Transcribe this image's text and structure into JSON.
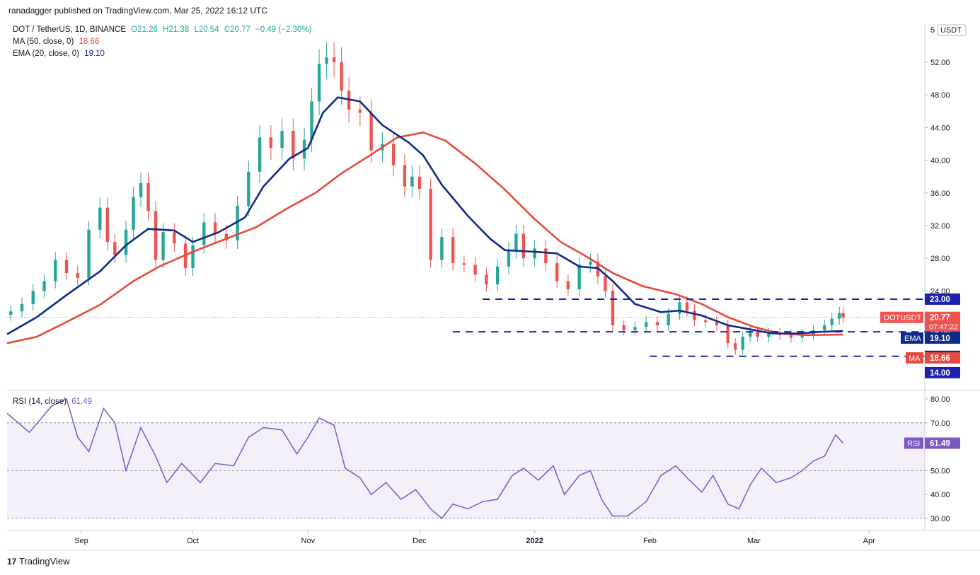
{
  "header": {
    "publisher": "ranadagger published on TradingView.com, Mar 25, 2022 16:12 UTC"
  },
  "legend": {
    "symbol": "DOT / TetherUS, 1D, BINANCE",
    "o": "O21.26",
    "h": "H21.38",
    "l": "L20.54",
    "c": "C20.77",
    "change": "−0.49 (−2.30%)",
    "ma_label": "MA (50, close, 0)",
    "ma_value": "18.66",
    "ema_label": "EMA (20, close, 0)",
    "ema_value": "19.10",
    "rsi_label": "RSI (14, close)",
    "rsi_value": "61.49"
  },
  "footer": {
    "brand": "TradingView"
  },
  "colors": {
    "up": "#26a69a",
    "down": "#ef5350",
    "ema": "#0d2b8a",
    "ma": "#e64a3c",
    "rsi": "#7e57c2",
    "level": "#1e22aa"
  },
  "chart_data": {
    "type": "candlestick",
    "currency_label": "USDT",
    "price_ticks": [
      "52.00",
      "48.00",
      "44.00",
      "40.00",
      "36.00",
      "32.00",
      "28.00",
      "24.00"
    ],
    "price_top_label": "5",
    "rsi_ticks": [
      "80.00",
      "70.00",
      "50.00",
      "40.00",
      "30.00"
    ],
    "x_labels": [
      "Sep",
      "Oct",
      "Nov",
      "Dec",
      "2022",
      "Feb",
      "Mar",
      "Apr"
    ],
    "levels": [
      {
        "value": 23.0,
        "label": "23.00",
        "from": "2021-12-18"
      },
      {
        "value": 19.0,
        "label": "19.00",
        "from": "2021-12-10"
      },
      {
        "value": 16.0,
        "label": "16.00",
        "from": "2022-02-01"
      },
      {
        "value": 14.0,
        "label": "14.00"
      }
    ],
    "price_tags": [
      {
        "name": "DOTUSDT",
        "value": 20.77,
        "label": "20.77",
        "countdown": "07:47:22"
      },
      {
        "name": "EMA",
        "value": 19.1,
        "label": "19.10"
      },
      {
        "name": "MA",
        "value": 18.66,
        "label": "18.66"
      }
    ],
    "rsi_tag": {
      "name": "RSI",
      "label": "61.49",
      "value": 61.49
    },
    "close_series": [
      {
        "d": "2021-08-13",
        "c": 21.5
      },
      {
        "d": "2021-08-16",
        "c": 22.4
      },
      {
        "d": "2021-08-19",
        "c": 24.0
      },
      {
        "d": "2021-08-22",
        "c": 25.2
      },
      {
        "d": "2021-08-25",
        "c": 27.8
      },
      {
        "d": "2021-08-28",
        "c": 26.2
      },
      {
        "d": "2021-08-31",
        "c": 25.6
      },
      {
        "d": "2021-09-03",
        "c": 31.5
      },
      {
        "d": "2021-09-06",
        "c": 34.2
      },
      {
        "d": "2021-09-08",
        "c": 30.0
      },
      {
        "d": "2021-09-10",
        "c": 28.4
      },
      {
        "d": "2021-09-13",
        "c": 31.5
      },
      {
        "d": "2021-09-15",
        "c": 35.5
      },
      {
        "d": "2021-09-17",
        "c": 37.2
      },
      {
        "d": "2021-09-19",
        "c": 33.8
      },
      {
        "d": "2021-09-21",
        "c": 27.8
      },
      {
        "d": "2021-09-23",
        "c": 31.2
      },
      {
        "d": "2021-09-26",
        "c": 29.8
      },
      {
        "d": "2021-09-29",
        "c": 26.8
      },
      {
        "d": "2021-10-01",
        "c": 29.6
      },
      {
        "d": "2021-10-04",
        "c": 32.4
      },
      {
        "d": "2021-10-07",
        "c": 31.0
      },
      {
        "d": "2021-10-10",
        "c": 30.2
      },
      {
        "d": "2021-10-13",
        "c": 34.4
      },
      {
        "d": "2021-10-16",
        "c": 38.6
      },
      {
        "d": "2021-10-19",
        "c": 42.8
      },
      {
        "d": "2021-10-22",
        "c": 41.5
      },
      {
        "d": "2021-10-25",
        "c": 43.6
      },
      {
        "d": "2021-10-28",
        "c": 40.2
      },
      {
        "d": "2021-10-31",
        "c": 42.5
      },
      {
        "d": "2021-11-02",
        "c": 47.2
      },
      {
        "d": "2021-11-04",
        "c": 51.8
      },
      {
        "d": "2021-11-06",
        "c": 52.6
      },
      {
        "d": "2021-11-08",
        "c": 52.0
      },
      {
        "d": "2021-11-10",
        "c": 48.5
      },
      {
        "d": "2021-11-12",
        "c": 46.2
      },
      {
        "d": "2021-11-15",
        "c": 45.8
      },
      {
        "d": "2021-11-18",
        "c": 41.2
      },
      {
        "d": "2021-11-21",
        "c": 42.0
      },
      {
        "d": "2021-11-24",
        "c": 39.4
      },
      {
        "d": "2021-11-27",
        "c": 36.8
      },
      {
        "d": "2021-11-29",
        "c": 38.0
      },
      {
        "d": "2021-12-01",
        "c": 36.5
      },
      {
        "d": "2021-12-04",
        "c": 27.8
      },
      {
        "d": "2021-12-07",
        "c": 30.6
      },
      {
        "d": "2021-12-10",
        "c": 27.4
      },
      {
        "d": "2021-12-13",
        "c": 27.2
      },
      {
        "d": "2021-12-16",
        "c": 26.0
      },
      {
        "d": "2021-12-19",
        "c": 24.8
      },
      {
        "d": "2021-12-22",
        "c": 27.0
      },
      {
        "d": "2021-12-25",
        "c": 29.0
      },
      {
        "d": "2021-12-27",
        "c": 31.0
      },
      {
        "d": "2021-12-29",
        "c": 28.0
      },
      {
        "d": "2022-01-01",
        "c": 29.2
      },
      {
        "d": "2022-01-04",
        "c": 27.4
      },
      {
        "d": "2022-01-07",
        "c": 25.2
      },
      {
        "d": "2022-01-10",
        "c": 24.2
      },
      {
        "d": "2022-01-13",
        "c": 27.2
      },
      {
        "d": "2022-01-16",
        "c": 27.6
      },
      {
        "d": "2022-01-18",
        "c": 25.8
      },
      {
        "d": "2022-01-20",
        "c": 24.0
      },
      {
        "d": "2022-01-22",
        "c": 19.8
      },
      {
        "d": "2022-01-25",
        "c": 19.2
      },
      {
        "d": "2022-01-28",
        "c": 19.6
      },
      {
        "d": "2022-01-31",
        "c": 20.2
      },
      {
        "d": "2022-02-03",
        "c": 19.8
      },
      {
        "d": "2022-02-06",
        "c": 21.2
      },
      {
        "d": "2022-02-09",
        "c": 22.6
      },
      {
        "d": "2022-02-11",
        "c": 21.6
      },
      {
        "d": "2022-02-13",
        "c": 20.4
      },
      {
        "d": "2022-02-16",
        "c": 20.2
      },
      {
        "d": "2022-02-19",
        "c": 19.8
      },
      {
        "d": "2022-02-22",
        "c": 17.6
      },
      {
        "d": "2022-02-24",
        "c": 16.8
      },
      {
        "d": "2022-02-26",
        "c": 18.4
      },
      {
        "d": "2022-02-28",
        "c": 19.0
      },
      {
        "d": "2022-03-02",
        "c": 18.4
      },
      {
        "d": "2022-03-05",
        "c": 18.8
      },
      {
        "d": "2022-03-08",
        "c": 18.6
      },
      {
        "d": "2022-03-11",
        "c": 18.3
      },
      {
        "d": "2022-03-14",
        "c": 18.7
      },
      {
        "d": "2022-03-17",
        "c": 19.2
      },
      {
        "d": "2022-03-20",
        "c": 19.8
      },
      {
        "d": "2022-03-22",
        "c": 20.6
      },
      {
        "d": "2022-03-24",
        "c": 21.3
      },
      {
        "d": "2022-03-25",
        "c": 20.77
      }
    ],
    "ema_series": [
      {
        "d": "2021-08-12",
        "v": 18.7
      },
      {
        "d": "2021-08-20",
        "v": 20.8
      },
      {
        "d": "2021-08-28",
        "v": 23.5
      },
      {
        "d": "2021-09-06",
        "v": 26.4
      },
      {
        "d": "2021-09-13",
        "v": 29.6
      },
      {
        "d": "2021-09-19",
        "v": 31.6
      },
      {
        "d": "2021-09-26",
        "v": 31.4
      },
      {
        "d": "2021-10-01",
        "v": 30.0
      },
      {
        "d": "2021-10-08",
        "v": 31.2
      },
      {
        "d": "2021-10-15",
        "v": 33.0
      },
      {
        "d": "2021-10-20",
        "v": 36.8
      },
      {
        "d": "2021-10-27",
        "v": 40.2
      },
      {
        "d": "2021-11-01",
        "v": 41.5
      },
      {
        "d": "2021-11-05",
        "v": 45.8
      },
      {
        "d": "2021-11-09",
        "v": 47.7
      },
      {
        "d": "2021-11-15",
        "v": 47.2
      },
      {
        "d": "2021-11-21",
        "v": 44.3
      },
      {
        "d": "2021-11-28",
        "v": 42.2
      },
      {
        "d": "2021-12-02",
        "v": 40.6
      },
      {
        "d": "2021-12-07",
        "v": 37.0
      },
      {
        "d": "2021-12-14",
        "v": 33.2
      },
      {
        "d": "2021-12-20",
        "v": 30.4
      },
      {
        "d": "2021-12-24",
        "v": 29.0
      },
      {
        "d": "2022-01-01",
        "v": 28.8
      },
      {
        "d": "2022-01-07",
        "v": 28.6
      },
      {
        "d": "2022-01-13",
        "v": 27.0
      },
      {
        "d": "2022-01-18",
        "v": 26.8
      },
      {
        "d": "2022-01-22",
        "v": 25.2
      },
      {
        "d": "2022-01-28",
        "v": 22.4
      },
      {
        "d": "2022-02-04",
        "v": 21.4
      },
      {
        "d": "2022-02-09",
        "v": 21.6
      },
      {
        "d": "2022-02-15",
        "v": 21.0
      },
      {
        "d": "2022-02-22",
        "v": 19.8
      },
      {
        "d": "2022-02-28",
        "v": 19.3
      },
      {
        "d": "2022-03-06",
        "v": 18.8
      },
      {
        "d": "2022-03-13",
        "v": 18.8
      },
      {
        "d": "2022-03-19",
        "v": 19.0
      },
      {
        "d": "2022-03-25",
        "v": 19.1
      }
    ],
    "ma_series": [
      {
        "d": "2021-08-12",
        "v": 17.6
      },
      {
        "d": "2021-08-20",
        "v": 18.4
      },
      {
        "d": "2021-08-28",
        "v": 20.2
      },
      {
        "d": "2021-09-06",
        "v": 22.3
      },
      {
        "d": "2021-09-15",
        "v": 25.2
      },
      {
        "d": "2021-09-22",
        "v": 27.0
      },
      {
        "d": "2021-10-01",
        "v": 28.8
      },
      {
        "d": "2021-10-10",
        "v": 30.4
      },
      {
        "d": "2021-10-18",
        "v": 31.8
      },
      {
        "d": "2021-10-26",
        "v": 34.0
      },
      {
        "d": "2021-11-03",
        "v": 36.0
      },
      {
        "d": "2021-11-10",
        "v": 38.4
      },
      {
        "d": "2021-11-17",
        "v": 40.4
      },
      {
        "d": "2021-11-25",
        "v": 42.8
      },
      {
        "d": "2021-12-02",
        "v": 43.4
      },
      {
        "d": "2021-12-08",
        "v": 42.4
      },
      {
        "d": "2021-12-16",
        "v": 39.6
      },
      {
        "d": "2021-12-24",
        "v": 36.4
      },
      {
        "d": "2022-01-01",
        "v": 32.8
      },
      {
        "d": "2022-01-08",
        "v": 30.0
      },
      {
        "d": "2022-01-15",
        "v": 28.2
      },
      {
        "d": "2022-01-22",
        "v": 26.2
      },
      {
        "d": "2022-01-30",
        "v": 24.6
      },
      {
        "d": "2022-02-08",
        "v": 23.6
      },
      {
        "d": "2022-02-15",
        "v": 22.4
      },
      {
        "d": "2022-02-22",
        "v": 20.8
      },
      {
        "d": "2022-03-01",
        "v": 19.6
      },
      {
        "d": "2022-03-08",
        "v": 18.8
      },
      {
        "d": "2022-03-15",
        "v": 18.6
      },
      {
        "d": "2022-03-25",
        "v": 18.66
      }
    ],
    "rsi_series": [
      {
        "d": "2021-08-12",
        "v": 74
      },
      {
        "d": "2021-08-18",
        "v": 66
      },
      {
        "d": "2021-08-24",
        "v": 77
      },
      {
        "d": "2021-08-28",
        "v": 80
      },
      {
        "d": "2021-08-31",
        "v": 64
      },
      {
        "d": "2021-09-03",
        "v": 58
      },
      {
        "d": "2021-09-07",
        "v": 76
      },
      {
        "d": "2021-09-10",
        "v": 70
      },
      {
        "d": "2021-09-13",
        "v": 50
      },
      {
        "d": "2021-09-17",
        "v": 68
      },
      {
        "d": "2021-09-21",
        "v": 56
      },
      {
        "d": "2021-09-24",
        "v": 45
      },
      {
        "d": "2021-09-28",
        "v": 53
      },
      {
        "d": "2021-10-03",
        "v": 45
      },
      {
        "d": "2021-10-07",
        "v": 53
      },
      {
        "d": "2021-10-12",
        "v": 52
      },
      {
        "d": "2021-10-16",
        "v": 64
      },
      {
        "d": "2021-10-20",
        "v": 68
      },
      {
        "d": "2021-10-25",
        "v": 67
      },
      {
        "d": "2021-10-29",
        "v": 57
      },
      {
        "d": "2021-11-01",
        "v": 64
      },
      {
        "d": "2021-11-04",
        "v": 72
      },
      {
        "d": "2021-11-08",
        "v": 69
      },
      {
        "d": "2021-11-11",
        "v": 51
      },
      {
        "d": "2021-11-15",
        "v": 47
      },
      {
        "d": "2021-11-18",
        "v": 40
      },
      {
        "d": "2021-11-22",
        "v": 45
      },
      {
        "d": "2021-11-26",
        "v": 38
      },
      {
        "d": "2021-11-30",
        "v": 42
      },
      {
        "d": "2021-12-04",
        "v": 34
      },
      {
        "d": "2021-12-07",
        "v": 30
      },
      {
        "d": "2021-12-10",
        "v": 36
      },
      {
        "d": "2021-12-14",
        "v": 34
      },
      {
        "d": "2021-12-18",
        "v": 37
      },
      {
        "d": "2021-12-22",
        "v": 38
      },
      {
        "d": "2021-12-26",
        "v": 48
      },
      {
        "d": "2021-12-29",
        "v": 51
      },
      {
        "d": "2022-01-02",
        "v": 46
      },
      {
        "d": "2022-01-06",
        "v": 52
      },
      {
        "d": "2022-01-09",
        "v": 40
      },
      {
        "d": "2022-01-13",
        "v": 48
      },
      {
        "d": "2022-01-16",
        "v": 50
      },
      {
        "d": "2022-01-19",
        "v": 38
      },
      {
        "d": "2022-01-22",
        "v": 31
      },
      {
        "d": "2022-01-26",
        "v": 31
      },
      {
        "d": "2022-01-31",
        "v": 37
      },
      {
        "d": "2022-02-04",
        "v": 48
      },
      {
        "d": "2022-02-08",
        "v": 52
      },
      {
        "d": "2022-02-11",
        "v": 47
      },
      {
        "d": "2022-02-15",
        "v": 41
      },
      {
        "d": "2022-02-18",
        "v": 48
      },
      {
        "d": "2022-02-22",
        "v": 36
      },
      {
        "d": "2022-02-25",
        "v": 34
      },
      {
        "d": "2022-02-28",
        "v": 44
      },
      {
        "d": "2022-03-03",
        "v": 51
      },
      {
        "d": "2022-03-07",
        "v": 45
      },
      {
        "d": "2022-03-11",
        "v": 47
      },
      {
        "d": "2022-03-14",
        "v": 50
      },
      {
        "d": "2022-03-17",
        "v": 54
      },
      {
        "d": "2022-03-20",
        "v": 56
      },
      {
        "d": "2022-03-23",
        "v": 65
      },
      {
        "d": "2022-03-25",
        "v": 61.49
      }
    ]
  }
}
